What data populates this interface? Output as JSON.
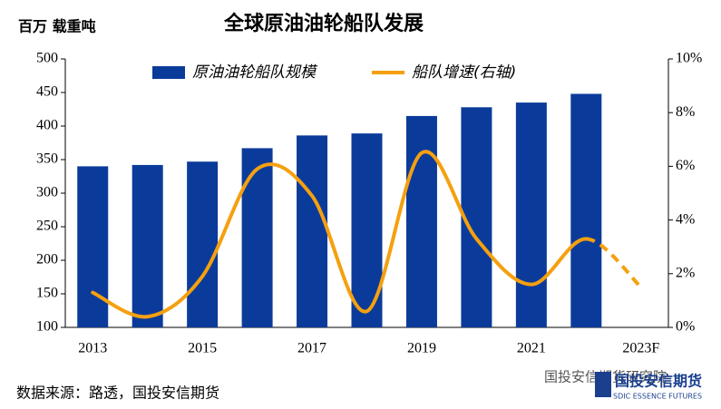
{
  "chart_data": {
    "type": "bar-line",
    "title": "全球原油油轮船队发展",
    "y_label": "百万 载重吨",
    "source": "数据来源：路透，国投安信期货",
    "watermark": "国投安信期货研究院",
    "logo_text": "国投安信期货",
    "logo_subtext": "SDIC ESSENCE FUTURES",
    "categories": [
      "2013",
      null,
      "2015",
      null,
      "2017",
      null,
      "2019",
      null,
      "2021",
      null,
      "2023F"
    ],
    "series": [
      {
        "name": "原油油轮船队规模",
        "type": "bar",
        "color": "#0b3b9a",
        "values": [
          340,
          342,
          347,
          367,
          386,
          389,
          415,
          428,
          435,
          448,
          null
        ]
      },
      {
        "name": "船队增速(右轴)",
        "type": "line",
        "axis": "y2",
        "color": "#f5a00f",
        "forecast_style": "dashed",
        "values": [
          1.3,
          0.4,
          1.9,
          5.9,
          4.9,
          0.6,
          6.5,
          3.3,
          1.6,
          3.3,
          1.5
        ]
      }
    ],
    "ylim": [
      100,
      500
    ],
    "yticks": [
      100,
      150,
      200,
      250,
      300,
      350,
      400,
      450,
      500
    ],
    "y2lim": [
      0,
      10
    ],
    "y2ticks": [
      {
        "value": 0,
        "label": "0%"
      },
      {
        "value": 2,
        "label": "2%"
      },
      {
        "value": 4,
        "label": "4%"
      },
      {
        "value": 6,
        "label": "6%"
      },
      {
        "value": 8,
        "label": "8%"
      },
      {
        "value": 10,
        "label": "10%"
      }
    ],
    "grid": false,
    "smooth": true
  }
}
